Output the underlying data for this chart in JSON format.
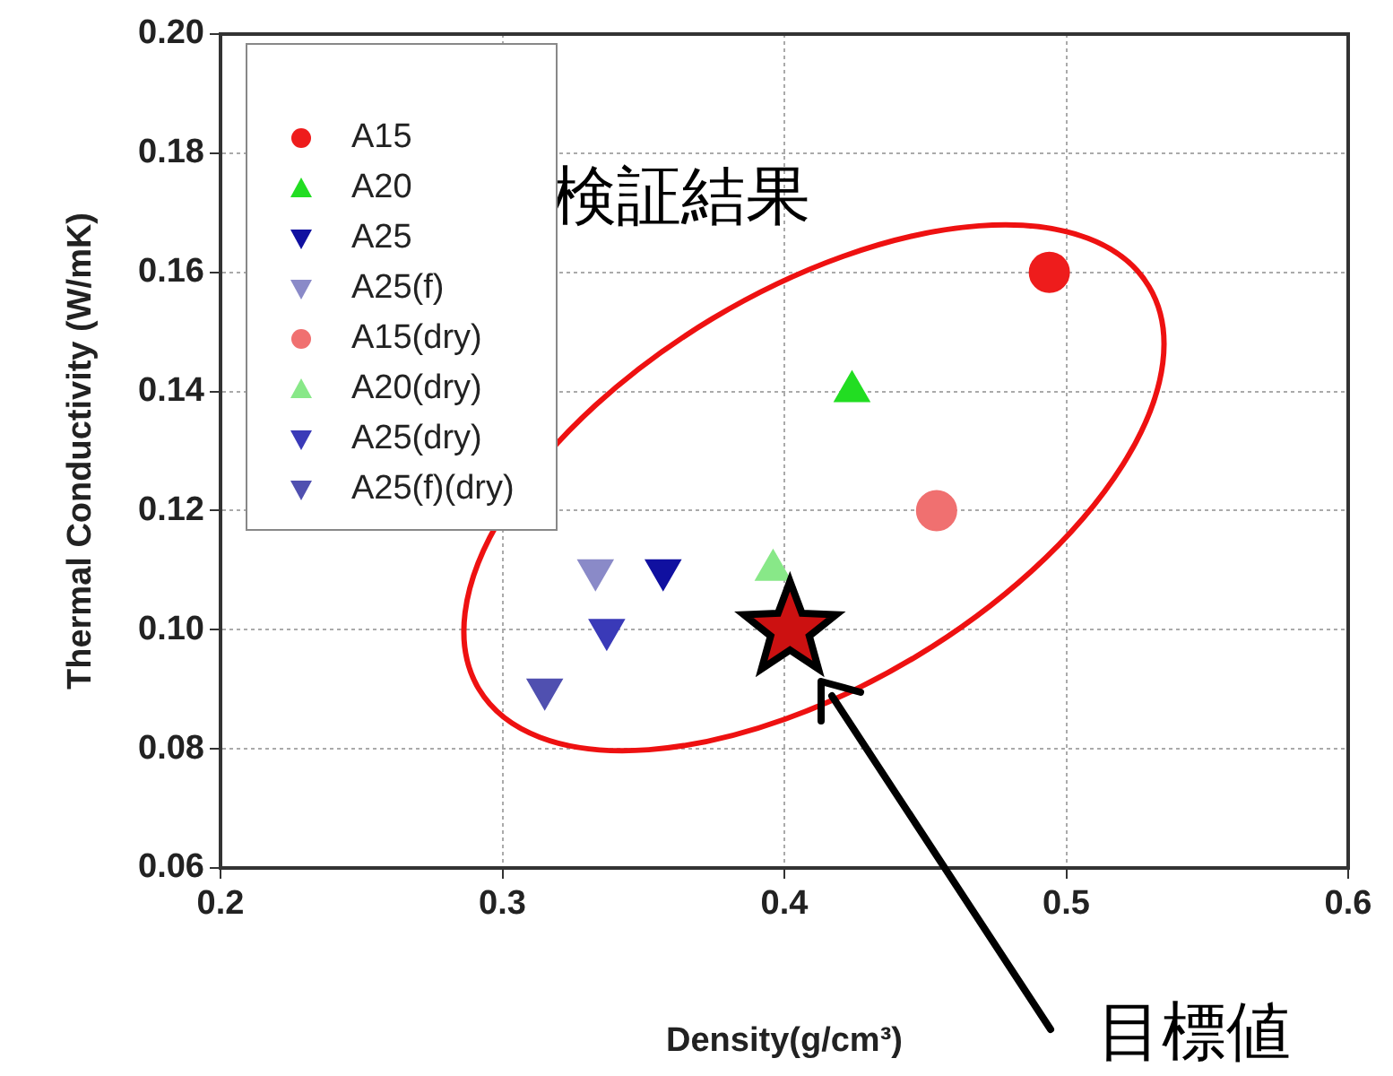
{
  "chart_data": {
    "type": "scatter",
    "xlabel": "Density(g/cm³)",
    "ylabel": "Thermal Conductivity (W/mK)",
    "xlim": [
      0.2,
      0.6
    ],
    "xticks": [
      0.2,
      0.3,
      0.4,
      0.5,
      0.6
    ],
    "ylim": [
      0.06,
      0.2
    ],
    "yticks": [
      {
        "value": 0.06,
        "label": "0.06"
      },
      {
        "value": 0.08,
        "label": "0.08"
      },
      {
        "value": 0.1,
        "label": "0.10"
      },
      {
        "value": 0.12,
        "label": "0.12"
      },
      {
        "value": 0.14,
        "label": "0.14"
      },
      {
        "value": 0.16,
        "label": "0.16"
      },
      {
        "value": 0.18,
        "label": "0.18"
      },
      {
        "value": 0.2,
        "label": "0.20"
      }
    ],
    "grid": true,
    "legend": "top left",
    "series": [
      {
        "name": "A15",
        "color": "#ee1c1c",
        "marker": "circle",
        "x": [
          0.494
        ],
        "values": [
          0.16
        ]
      },
      {
        "name": "A20",
        "color": "#22dd22",
        "marker": "triangle",
        "x": [
          0.424
        ],
        "values": [
          0.14
        ]
      },
      {
        "name": "A25",
        "color": "#1010a0",
        "marker": "triangle-down",
        "x": [
          0.357
        ],
        "values": [
          0.11
        ]
      },
      {
        "name": "A25(f)",
        "color": "#8a8ac8",
        "marker": "triangle-down",
        "x": [
          0.333
        ],
        "values": [
          0.11
        ]
      },
      {
        "name": "A15(dry)",
        "color": "#f07070",
        "marker": "circle",
        "x": [
          0.454
        ],
        "values": [
          0.12
        ]
      },
      {
        "name": "A20(dry)",
        "color": "#88e888",
        "marker": "triangle",
        "x": [
          0.396
        ],
        "values": [
          0.11
        ]
      },
      {
        "name": "A25(dry)",
        "color": "#3a3ab8",
        "marker": "triangle-down",
        "x": [
          0.337
        ],
        "values": [
          0.1
        ]
      },
      {
        "name": "A25(f)(dry)",
        "color": "#5050b0",
        "marker": "triangle-down",
        "x": [
          0.315
        ],
        "values": [
          0.09
        ]
      },
      {
        "color": "#cc1111",
        "marker": "star",
        "x": [
          0.402
        ],
        "values": [
          0.1
        ]
      }
    ],
    "annotations": [
      "検証結果",
      "目標値"
    ]
  }
}
